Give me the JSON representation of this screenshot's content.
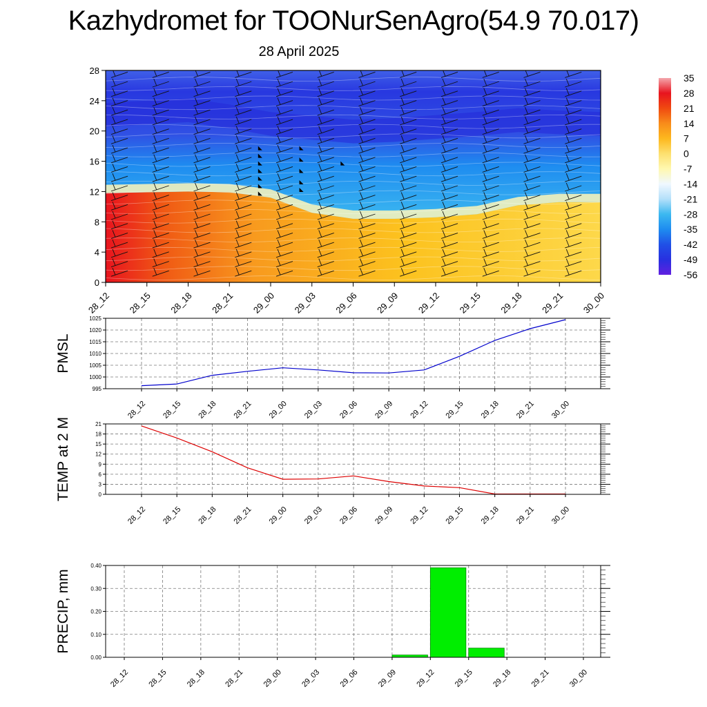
{
  "title": "Kazhydromet for TOONurSenAgro(54.9 70.017)",
  "subtitle": "28 April 2025",
  "time_labels": [
    "28_12",
    "28_15",
    "28_18",
    "28_21",
    "29_00",
    "29_03",
    "29_06",
    "29_09",
    "29_12",
    "29_15",
    "29_18",
    "29_21",
    "30_00"
  ],
  "colors": {
    "pmsl_line": "#0000cc",
    "temp_line": "#dd0000",
    "precip_bar": "#00ee00",
    "precip_bar_stroke": "#008800"
  },
  "chart_data": [
    {
      "type": "heatmap",
      "title": "",
      "x": [
        "28_12",
        "28_15",
        "28_18",
        "28_21",
        "29_00",
        "29_03",
        "29_06",
        "29_09",
        "29_12",
        "29_15",
        "29_18",
        "29_21",
        "30_00"
      ],
      "yticks": [
        0,
        4,
        8,
        12,
        16,
        20,
        24,
        28
      ],
      "ylim": [
        0,
        28
      ],
      "colorbar": {
        "labels": [
          "35",
          "28",
          "21",
          "14",
          "7",
          "0",
          "-7",
          "-14",
          "-21",
          "-28",
          "-35",
          "-42",
          "-49",
          "-56"
        ],
        "stops": [
          "#f4a6ac",
          "#e8141e",
          "#f04a10",
          "#f88c1a",
          "#fdb81e",
          "#fde070",
          "#fff8b0",
          "#f0f8ff",
          "#b4e0fa",
          "#3cb8f0",
          "#1e8cf0",
          "#2050e6",
          "#2830e0",
          "#6020e0"
        ]
      },
      "freezing_level": [
        11.8,
        11.9,
        12.0,
        11.9,
        11.2,
        9.2,
        8.4,
        8.4,
        8.6,
        9.0,
        10.2,
        10.6,
        10.6
      ],
      "tropopause_level": [
        20.2,
        20.5,
        20.8,
        20.0,
        19.0,
        18.5,
        18.0,
        18.2,
        18.6,
        19.0,
        19.5,
        19.2,
        19.0
      ],
      "grid": false
    },
    {
      "type": "line",
      "x": [
        "28_12",
        "28_15",
        "28_18",
        "28_21",
        "29_00",
        "29_03",
        "29_06",
        "29_09",
        "29_12",
        "29_15",
        "29_18",
        "29_21",
        "30_00"
      ],
      "series": [
        {
          "values": [
            996.3,
            997.0,
            1000.7,
            1002.4,
            1003.9,
            1003.0,
            1001.8,
            1001.7,
            1003.0,
            1008.8,
            1015.6,
            1020.6,
            1024.4
          ]
        }
      ],
      "xlabel": "",
      "ylabel": "PMSL",
      "yticks": [
        "995",
        "1000",
        "1005",
        "1010",
        "1015",
        "1020",
        "1025"
      ],
      "ylim": [
        995,
        1025
      ],
      "grid": true
    },
    {
      "type": "line",
      "x": [
        "28_12",
        "28_15",
        "28_18",
        "28_21",
        "29_00",
        "29_03",
        "29_06",
        "29_09",
        "29_12",
        "29_15",
        "29_18",
        "29_21",
        "30_00"
      ],
      "series": [
        {
          "values": [
            20.4,
            16.8,
            12.7,
            7.9,
            4.5,
            4.6,
            5.5,
            3.8,
            2.5,
            2.0,
            0.1,
            0.1,
            0.1
          ]
        }
      ],
      "xlabel": "",
      "ylabel": "TEMP at 2 M",
      "yticks": [
        "0",
        "3",
        "6",
        "9",
        "12",
        "15",
        "18",
        "21"
      ],
      "ylim": [
        0,
        21
      ],
      "grid": true
    },
    {
      "type": "bar",
      "categories": [
        "28_12",
        "28_15",
        "28_18",
        "28_21",
        "29_00",
        "29_03",
        "29_06",
        "29_09",
        "29_12",
        "29_15",
        "29_18",
        "29_21",
        "30_00"
      ],
      "values": [
        0,
        0,
        0,
        0,
        0,
        0,
        0,
        0.01,
        0.39,
        0.04,
        0,
        0,
        0
      ],
      "xlabel": "",
      "ylabel": "PRECIP, mm",
      "yticks": [
        "0.00",
        "0.10",
        "0.20",
        "0.30",
        "0.40"
      ],
      "ylim": [
        0,
        0.4
      ],
      "grid": true
    }
  ]
}
